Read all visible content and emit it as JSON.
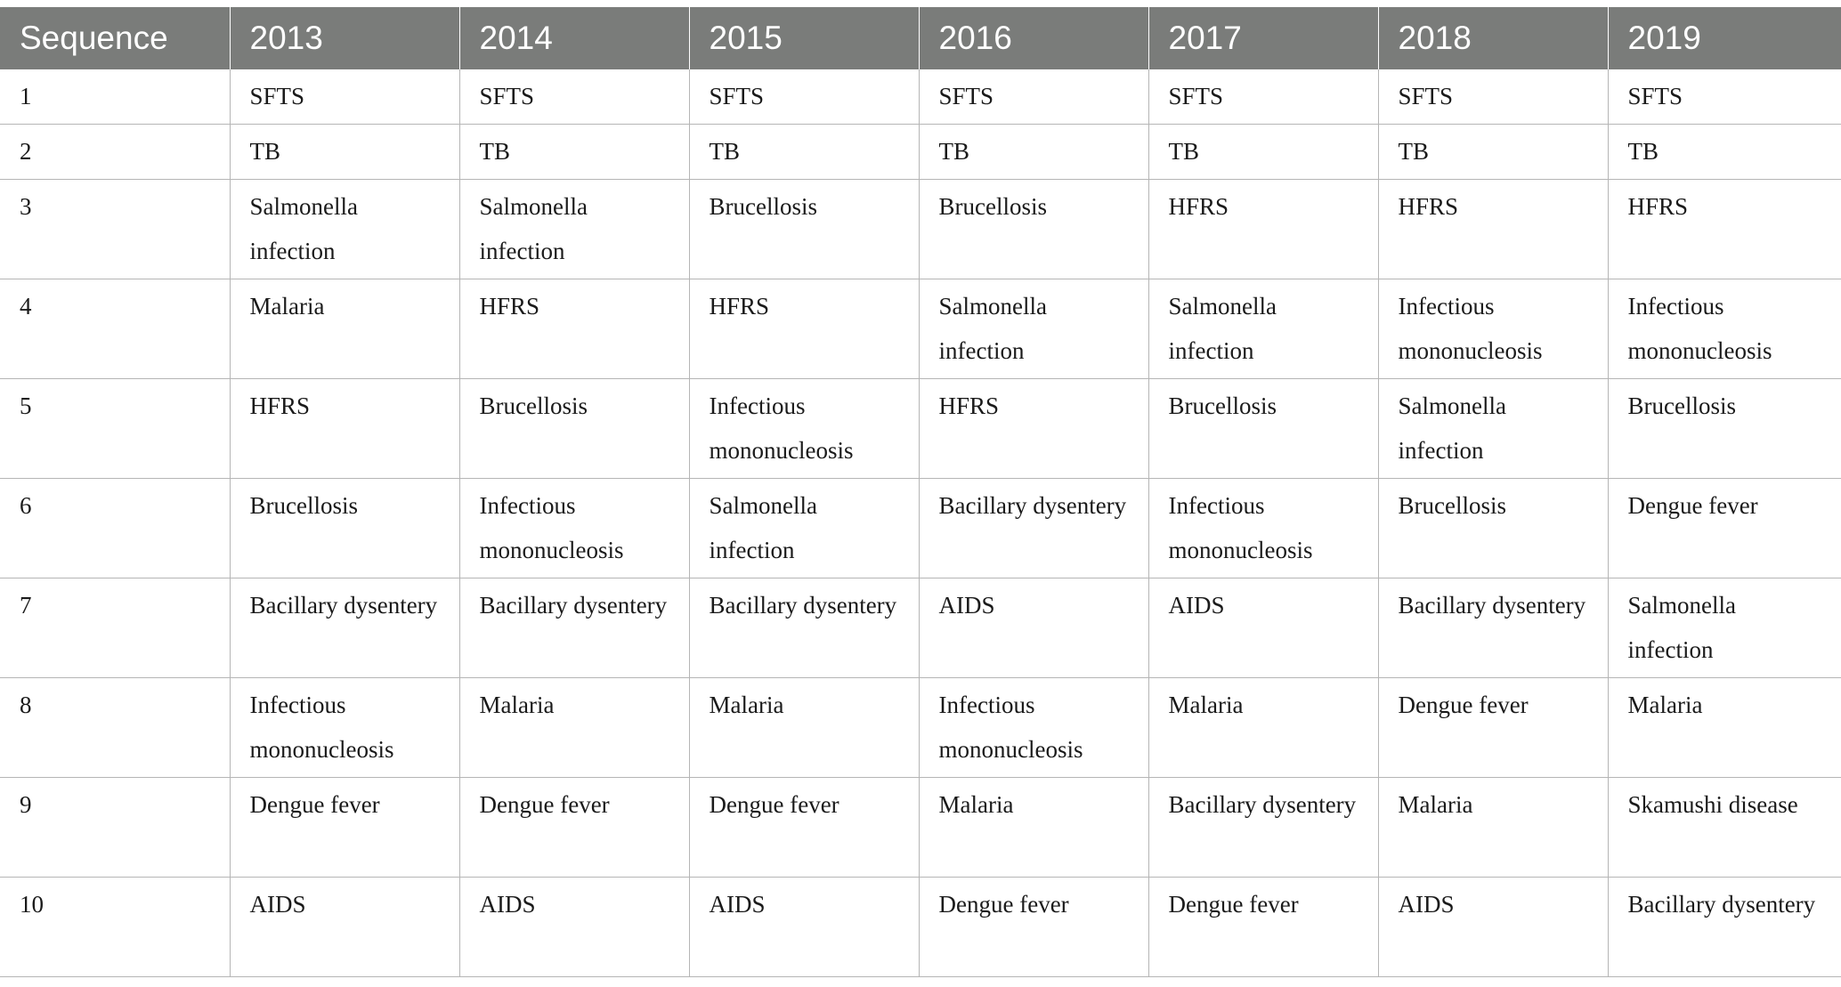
{
  "header": {
    "sequence_label": "Sequence",
    "years": [
      "2013",
      "2014",
      "2015",
      "2016",
      "2017",
      "2018",
      "2019"
    ]
  },
  "rows": [
    {
      "seq": "1",
      "cells": [
        "SFTS",
        "SFTS",
        "SFTS",
        "SFTS",
        "SFTS",
        "SFTS",
        "SFTS"
      ]
    },
    {
      "seq": "2",
      "cells": [
        "TB",
        "TB",
        "TB",
        "TB",
        "TB",
        "TB",
        "TB"
      ]
    },
    {
      "seq": "3",
      "cells": [
        "Salmonella infection",
        "Salmonella infection",
        "Brucellosis",
        "Brucellosis",
        "HFRS",
        "HFRS",
        "HFRS"
      ]
    },
    {
      "seq": "4",
      "cells": [
        "Malaria",
        "HFRS",
        "HFRS",
        "Salmonella infection",
        "Salmonella infection",
        "Infectious mononucleosis",
        "Infectious mononucleosis"
      ]
    },
    {
      "seq": "5",
      "cells": [
        "HFRS",
        "Brucellosis",
        "Infectious mononucleosis",
        "HFRS",
        "Brucellosis",
        "Salmonella infection",
        "Brucellosis"
      ]
    },
    {
      "seq": "6",
      "cells": [
        "Brucellosis",
        "Infectious mononucleosis",
        "Salmonella infection",
        "Bacillary dysentery",
        "Infectious mononucleosis",
        "Brucellosis",
        "Dengue fever"
      ]
    },
    {
      "seq": "7",
      "cells": [
        "Bacillary dysentery",
        "Bacillary dysentery",
        "Bacillary dysentery",
        "AIDS",
        "AIDS",
        "Bacillary dysentery",
        "Salmonella infection"
      ]
    },
    {
      "seq": "8",
      "cells": [
        "Infectious mononucleosis",
        "Malaria",
        "Malaria",
        "Infectious mononucleosis",
        "Malaria",
        "Dengue fever",
        "Malaria"
      ]
    },
    {
      "seq": "9",
      "cells": [
        "Dengue fever",
        "Dengue fever",
        "Dengue fever",
        "Malaria",
        "Bacillary dysentery",
        "Malaria",
        "Skamushi disease"
      ]
    },
    {
      "seq": "10",
      "cells": [
        "AIDS",
        "AIDS",
        "AIDS",
        "Dengue fever",
        "Dengue fever",
        "AIDS",
        "Bacillary dysentery"
      ]
    }
  ]
}
